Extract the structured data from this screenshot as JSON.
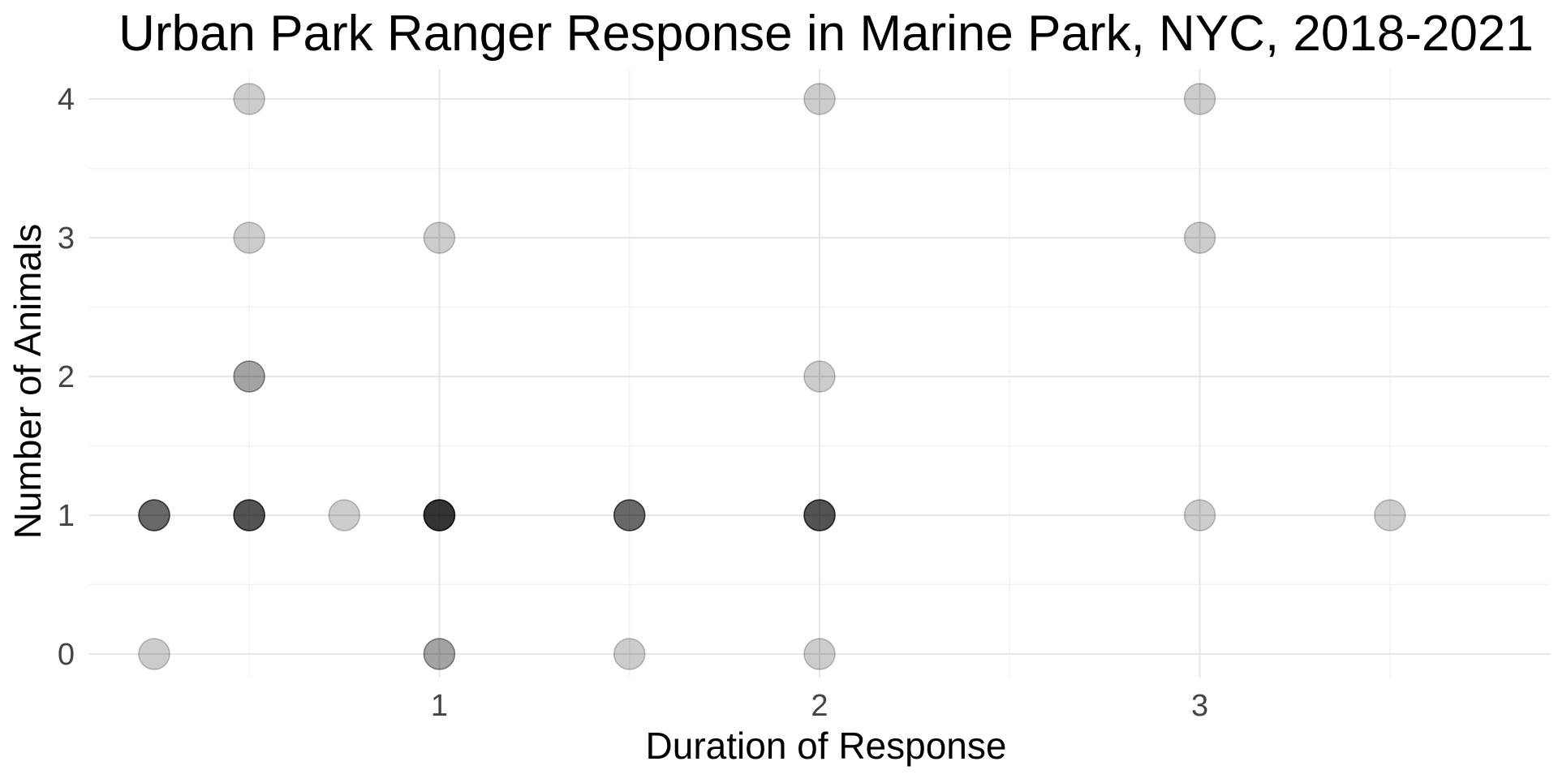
{
  "chart_data": {
    "type": "scatter",
    "title": "Urban Park Ranger Response in Marine Park, NYC, 2018-2021",
    "xlabel": "Duration of Response",
    "ylabel": "Number of Animals",
    "xlim": [
      0.25,
      3.75
    ],
    "ylim": [
      -0.2,
      4.2
    ],
    "x_ticks": [
      1,
      2,
      3
    ],
    "y_ticks": [
      0,
      1,
      2,
      3,
      4
    ],
    "x_minor": [
      0.5,
      1.5,
      2.5,
      3.5
    ],
    "y_minor": [
      0.5,
      1.5,
      2.5,
      3.5
    ],
    "grid": true,
    "legend": "none",
    "point_color": "#000000",
    "point_alpha": 0.2,
    "points": [
      {
        "x": 0.25,
        "y": 0,
        "count": 1
      },
      {
        "x": 0.25,
        "y": 1,
        "count": 4
      },
      {
        "x": 0.5,
        "y": 4,
        "count": 1
      },
      {
        "x": 0.5,
        "y": 3,
        "count": 1
      },
      {
        "x": 0.5,
        "y": 2,
        "count": 2
      },
      {
        "x": 0.5,
        "y": 1,
        "count": 5
      },
      {
        "x": 0.75,
        "y": 1,
        "count": 1
      },
      {
        "x": 1,
        "y": 3,
        "count": 1
      },
      {
        "x": 1,
        "y": 1,
        "count": 7
      },
      {
        "x": 1,
        "y": 0,
        "count": 2
      },
      {
        "x": 1.5,
        "y": 1,
        "count": 4
      },
      {
        "x": 1.5,
        "y": 0,
        "count": 1
      },
      {
        "x": 2,
        "y": 4,
        "count": 1
      },
      {
        "x": 2,
        "y": 2,
        "count": 1
      },
      {
        "x": 2,
        "y": 1,
        "count": 5
      },
      {
        "x": 2,
        "y": 0,
        "count": 1
      },
      {
        "x": 3,
        "y": 4,
        "count": 1
      },
      {
        "x": 3,
        "y": 3,
        "count": 1
      },
      {
        "x": 3,
        "y": 1,
        "count": 1
      },
      {
        "x": 3.5,
        "y": 1,
        "count": 1
      }
    ]
  }
}
